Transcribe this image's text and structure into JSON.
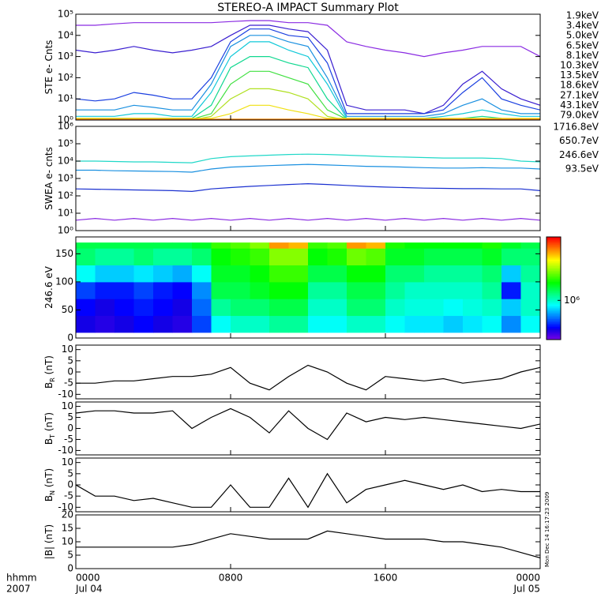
{
  "chart_data": [
    {
      "type": "line",
      "title": "STEREO-A IMPACT Summary Plot",
      "annotation": "Mon Dec 14 16:17:23 2009",
      "ylabel": "STE e- Cnts",
      "log": true,
      "xlim": [
        0,
        24
      ],
      "ylim": [
        1,
        100000
      ],
      "yticks": [
        {
          "value": 1,
          "label": "10⁰"
        },
        {
          "value": 10,
          "label": "10¹"
        },
        {
          "value": 100,
          "label": "10²"
        },
        {
          "value": 1000,
          "label": "10³"
        },
        {
          "value": 10000,
          "label": "10⁴"
        },
        {
          "value": 100000,
          "label": "10⁵"
        }
      ],
      "x": [
        0,
        1,
        2,
        3,
        4,
        5,
        6,
        7,
        8,
        9,
        10,
        11,
        12,
        13,
        14,
        15,
        16,
        17,
        18,
        19,
        20,
        21,
        22,
        23,
        24
      ],
      "series": [
        {
          "name": "1.9keV",
          "color": "#8a2be2",
          "values": [
            30000,
            30000,
            35000,
            40000,
            40000,
            40000,
            40000,
            40000,
            45000,
            50000,
            50000,
            40000,
            40000,
            30000,
            5000,
            3000,
            2000,
            1500,
            1000,
            1500,
            2000,
            3000,
            3000,
            3000,
            1000
          ]
        },
        {
          "name": "3.4keV",
          "color": "#3a1fd0",
          "values": [
            2000,
            1500,
            2000,
            3000,
            2000,
            1500,
            2000,
            3000,
            10000,
            30000,
            30000,
            20000,
            15000,
            2000,
            5,
            3,
            3,
            3,
            2,
            5,
            50,
            200,
            30,
            10,
            5
          ]
        },
        {
          "name": "5.0keV",
          "color": "#1a3fe0",
          "values": [
            10,
            8,
            10,
            20,
            15,
            10,
            10,
            100,
            5000,
            20000,
            20000,
            10000,
            8000,
            500,
            2,
            2,
            2,
            2,
            2,
            3,
            20,
            100,
            10,
            5,
            3
          ]
        },
        {
          "name": "6.5keV",
          "color": "#1a90e0",
          "values": [
            3,
            3,
            3,
            5,
            4,
            3,
            3,
            50,
            3000,
            10000,
            10000,
            5000,
            3000,
            100,
            1.5,
            1.5,
            1.5,
            1.5,
            1.5,
            2,
            5,
            10,
            3,
            2,
            2
          ]
        },
        {
          "name": "8.1keV",
          "color": "#10c8d8",
          "values": [
            1.5,
            1.5,
            1.5,
            2,
            2,
            1.5,
            1.5,
            20,
            1000,
            5000,
            5000,
            2000,
            1000,
            50,
            1.2,
            1.2,
            1.2,
            1.2,
            1.2,
            1.5,
            2,
            3,
            2,
            1.5,
            1.5
          ]
        },
        {
          "name": "10.3keV",
          "color": "#10d890",
          "values": [
            1.2,
            1.2,
            1.2,
            1.2,
            1.2,
            1.2,
            1.2,
            5,
            300,
            1000,
            1000,
            500,
            300,
            10,
            1.1,
            1.1,
            1.1,
            1.1,
            1.1,
            1.1,
            1.2,
            1.5,
            1.2,
            1.1,
            1.1
          ]
        },
        {
          "name": "13.5keV",
          "color": "#40e040",
          "values": [
            1.1,
            1.1,
            1.1,
            1.1,
            1.1,
            1.1,
            1.1,
            2,
            50,
            200,
            200,
            100,
            50,
            3,
            1.1,
            1.1,
            1.1,
            1.1,
            1.1,
            1.1,
            1.1,
            1.2,
            1.1,
            1.1,
            1.1
          ]
        },
        {
          "name": "18.6keV",
          "color": "#b0e020",
          "values": [
            1,
            1,
            1,
            1,
            1,
            1,
            1,
            1.5,
            10,
            30,
            30,
            20,
            10,
            1.5,
            1,
            1,
            1,
            1,
            1,
            1,
            1,
            1,
            1,
            1,
            1
          ]
        },
        {
          "name": "27.1keV",
          "color": "#f0e010",
          "values": [
            1.2,
            1.2,
            1.2,
            1.2,
            1.2,
            1.2,
            1.2,
            1.2,
            2,
            5,
            5,
            3,
            2,
            1.2,
            1.2,
            1.2,
            1.2,
            1.2,
            1.2,
            1.2,
            1.2,
            1.2,
            1.2,
            1.2,
            1.2
          ]
        },
        {
          "name": "43.1keV",
          "color": "#f09010",
          "values": [
            1.1,
            1.1,
            1.1,
            1.1,
            1.1,
            1.1,
            1.1,
            1.1,
            1.1,
            1.1,
            1.1,
            1.1,
            1.1,
            1.1,
            1.1,
            1.1,
            1.1,
            1.1,
            1.1,
            1.1,
            1.1,
            1.1,
            1.1,
            1.1,
            1.1
          ]
        },
        {
          "name": "79.0keV",
          "color": "#e02010",
          "values": [
            1,
            1,
            1,
            1,
            1,
            1,
            1,
            1,
            1,
            1,
            1,
            1,
            1,
            1,
            1,
            1,
            1,
            1,
            1,
            1,
            1,
            1,
            1,
            1,
            1
          ]
        }
      ]
    },
    {
      "type": "line",
      "ylabel": "SWEA e- cnts",
      "log": true,
      "xlim": [
        0,
        24
      ],
      "ylim": [
        1,
        1000000
      ],
      "yticks": [
        {
          "value": 1,
          "label": "10⁰"
        },
        {
          "value": 10,
          "label": "10¹"
        },
        {
          "value": 100,
          "label": "10²"
        },
        {
          "value": 1000,
          "label": "10³"
        },
        {
          "value": 10000,
          "label": "10⁴"
        },
        {
          "value": 100000,
          "label": "10⁵"
        },
        {
          "value": 1000000,
          "label": "10⁶"
        }
      ],
      "x": [
        0,
        1,
        2,
        3,
        4,
        5,
        6,
        7,
        8,
        9,
        10,
        11,
        12,
        13,
        14,
        15,
        16,
        17,
        18,
        19,
        20,
        21,
        22,
        23,
        24
      ],
      "series": [
        {
          "name": "1716.8eV",
          "color": "#8a2be2",
          "values": [
            4,
            5,
            4,
            5,
            4,
            5,
            4,
            5,
            4,
            5,
            4,
            5,
            4,
            5,
            4,
            5,
            4,
            5,
            4,
            5,
            4,
            5,
            4,
            5,
            4
          ]
        },
        {
          "name": "650.7eV",
          "color": "#1a30d0",
          "values": [
            250,
            240,
            230,
            220,
            210,
            200,
            180,
            250,
            300,
            350,
            400,
            450,
            500,
            450,
            400,
            350,
            320,
            300,
            280,
            270,
            260,
            260,
            250,
            250,
            200
          ]
        },
        {
          "name": "246.6eV",
          "color": "#1a90e0",
          "values": [
            3000,
            3000,
            2800,
            2700,
            2600,
            2500,
            2300,
            3500,
            4500,
            5000,
            5500,
            6000,
            6500,
            6000,
            5500,
            5000,
            4800,
            4500,
            4200,
            4000,
            4000,
            4200,
            4000,
            4000,
            3500
          ]
        },
        {
          "name": "93.5eV",
          "color": "#20d8c8",
          "values": [
            10000,
            10000,
            9500,
            9000,
            9000,
            8500,
            8000,
            14000,
            18000,
            20000,
            22000,
            24000,
            25000,
            24000,
            22000,
            20000,
            18000,
            17000,
            16000,
            15000,
            15000,
            15000,
            14000,
            10000,
            9000
          ]
        }
      ]
    },
    {
      "type": "heatmap",
      "ylabel": "246.6 eV",
      "xlim": [
        0,
        24
      ],
      "ylim": [
        0,
        180
      ],
      "yticks": [
        0,
        50,
        100,
        150
      ],
      "zlim": [
        400000,
        4400000
      ],
      "zlog": true,
      "zticks": [
        {
          "value": 1000000,
          "label": "10⁶"
        }
      ],
      "x_bins": [
        0,
        1,
        2,
        3,
        4,
        5,
        6,
        7,
        8,
        9,
        10,
        11,
        12,
        13,
        14,
        15,
        16,
        17,
        18,
        19,
        20,
        21,
        22,
        23,
        24
      ],
      "y_bins": [
        10,
        40,
        70,
        100,
        130,
        160,
        170
      ],
      "z": [
        [
          500000,
          480000,
          500000,
          520000,
          500000,
          480000,
          600000,
          900000,
          1000000,
          1000000,
          1100000,
          1100000,
          900000,
          900000,
          1000000,
          1000000,
          900000,
          850000,
          850000,
          800000,
          850000,
          900000,
          700000,
          900000
        ],
        [
          520000,
          500000,
          520000,
          550000,
          520000,
          500000,
          650000,
          1100000,
          1200000,
          1200000,
          1300000,
          1300000,
          1000000,
          1000000,
          1200000,
          1200000,
          1000000,
          950000,
          950000,
          900000,
          950000,
          1000000,
          800000,
          1000000
        ],
        [
          600000,
          550000,
          550000,
          600000,
          550000,
          520000,
          700000,
          1300000,
          1300000,
          1400000,
          1500000,
          1500000,
          1100000,
          1100000,
          1300000,
          1300000,
          1100000,
          1000000,
          1000000,
          1000000,
          1000000,
          1100000,
          550000,
          1000000
        ],
        [
          900000,
          800000,
          800000,
          850000,
          800000,
          750000,
          900000,
          1400000,
          1400000,
          1500000,
          1700000,
          1700000,
          1300000,
          1300000,
          1500000,
          1500000,
          1200000,
          1200000,
          1100000,
          1100000,
          1100000,
          1200000,
          800000,
          1100000
        ],
        [
          1200000,
          1100000,
          1100000,
          1200000,
          1100000,
          1100000,
          1200000,
          1500000,
          1600000,
          1700000,
          2000000,
          2000000,
          1500000,
          1600000,
          1900000,
          1800000,
          1400000,
          1400000,
          1300000,
          1300000,
          1300000,
          1400000,
          1200000,
          1200000
        ],
        [
          1300000,
          1300000,
          1300000,
          1300000,
          1300000,
          1300000,
          1400000,
          1700000,
          1800000,
          2000000,
          3200000,
          3000000,
          1700000,
          1800000,
          3200000,
          3000000,
          1600000,
          1500000,
          1500000,
          1500000,
          1500000,
          1600000,
          1400000,
          1300000
        ]
      ]
    },
    {
      "type": "line",
      "ylabel": "B",
      "ylabel_sub": "R",
      "ylabel_unit": " (nT)",
      "xlim": [
        0,
        24
      ],
      "ylim": [
        -12,
        12
      ],
      "yticks": [
        -10,
        -5,
        0,
        5,
        10
      ],
      "x": [
        0,
        1,
        2,
        3,
        4,
        5,
        6,
        7,
        8,
        9,
        10,
        11,
        12,
        13,
        14,
        15,
        16,
        17,
        18,
        19,
        20,
        21,
        22,
        23,
        24
      ],
      "series": [
        {
          "color": "#000000",
          "values": [
            -5,
            -5,
            -4,
            -4,
            -3,
            -2,
            -2,
            -1,
            2,
            -5,
            -8,
            -2,
            3,
            0,
            -5,
            -8,
            -2,
            -3,
            -4,
            -3,
            -5,
            -4,
            -3,
            0,
            2
          ]
        }
      ]
    },
    {
      "type": "line",
      "ylabel": "B",
      "ylabel_sub": "T",
      "ylabel_unit": " (nT)",
      "xlim": [
        0,
        24
      ],
      "ylim": [
        -12,
        12
      ],
      "yticks": [
        -10,
        -5,
        0,
        5,
        10
      ],
      "x": [
        0,
        1,
        2,
        3,
        4,
        5,
        6,
        7,
        8,
        9,
        10,
        11,
        12,
        13,
        14,
        15,
        16,
        17,
        18,
        19,
        20,
        21,
        22,
        23,
        24
      ],
      "series": [
        {
          "color": "#000000",
          "values": [
            7,
            8,
            8,
            7,
            7,
            8,
            0,
            5,
            9,
            5,
            -2,
            8,
            0,
            -5,
            7,
            3,
            5,
            4,
            5,
            4,
            3,
            2,
            1,
            0,
            2
          ]
        }
      ]
    },
    {
      "type": "line",
      "ylabel": "B",
      "ylabel_sub": "N",
      "ylabel_unit": " (nT)",
      "xlim": [
        0,
        24
      ],
      "ylim": [
        -12,
        12
      ],
      "yticks": [
        -10,
        -5,
        0,
        5,
        10
      ],
      "x": [
        0,
        1,
        2,
        3,
        4,
        5,
        6,
        7,
        8,
        9,
        10,
        11,
        12,
        13,
        14,
        15,
        16,
        17,
        18,
        19,
        20,
        21,
        22,
        23,
        24
      ],
      "series": [
        {
          "color": "#000000",
          "values": [
            0,
            -5,
            -5,
            -7,
            -6,
            -8,
            -10,
            -10,
            0,
            -10,
            -10,
            3,
            -10,
            5,
            -8,
            -2,
            0,
            2,
            0,
            -2,
            0,
            -3,
            -2,
            -3,
            -3
          ]
        }
      ]
    },
    {
      "type": "line",
      "ylabel": "|B| (nT)",
      "xlabel": "hhmm",
      "year_label": "2007",
      "xlim": [
        0,
        24
      ],
      "ylim": [
        0,
        20
      ],
      "yticks": [
        0,
        5,
        10,
        15,
        20
      ],
      "xticks": [
        {
          "value": 0,
          "label": "0000"
        },
        {
          "value": 8,
          "label": "0800"
        },
        {
          "value": 16,
          "label": "1600"
        },
        {
          "value": 24,
          "label": "0000"
        }
      ],
      "date_labels": [
        {
          "value": 0,
          "label": "Jul 04"
        },
        {
          "value": 24,
          "label": "Jul 05"
        }
      ],
      "x": [
        0,
        1,
        2,
        3,
        4,
        5,
        6,
        7,
        8,
        9,
        10,
        11,
        12,
        13,
        14,
        15,
        16,
        17,
        18,
        19,
        20,
        21,
        22,
        23,
        24
      ],
      "series": [
        {
          "color": "#000000",
          "values": [
            8,
            8,
            8,
            8,
            8,
            8,
            9,
            11,
            13,
            12,
            11,
            11,
            11,
            14,
            13,
            12,
            11,
            11,
            11,
            10,
            10,
            9,
            8,
            6,
            4
          ]
        }
      ]
    }
  ]
}
